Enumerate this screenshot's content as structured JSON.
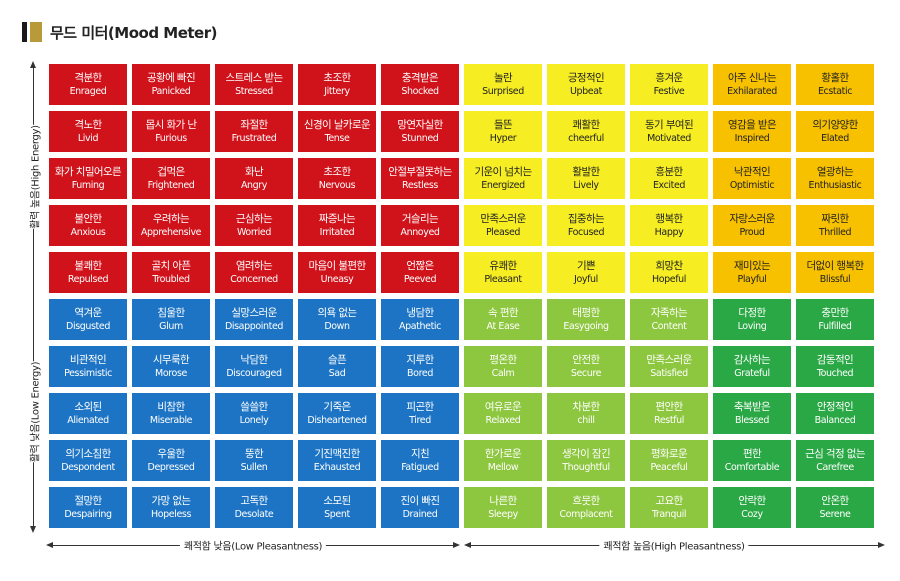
{
  "title": "무드 미터(Mood Meter)",
  "axes": {
    "high_energy": "활력 높음(High Energy)",
    "low_energy": "활력 낮음(Low Energy)",
    "low_pleasantness": "쾌적함 낮음(Low Pleasantness)",
    "high_pleasantness": "쾌적함 높음(High Pleasantness)"
  },
  "colors": {
    "red": "#d0121b",
    "blue": "#1d74c4",
    "yellow": "#f6ee22",
    "orange": "#f7c100",
    "light_green": "#8dc63f",
    "dark_green": "#2aa845"
  },
  "left_rows": [
    [
      {
        "ko": "격분한",
        "en": "Enraged",
        "color": "red"
      },
      {
        "ko": "공황에 빠진",
        "en": "Panicked",
        "color": "red"
      },
      {
        "ko": "스트레스 받는",
        "en": "Stressed",
        "color": "red"
      },
      {
        "ko": "초조한",
        "en": "Jittery",
        "color": "red"
      },
      {
        "ko": "충격받은",
        "en": "Shocked",
        "color": "red"
      }
    ],
    [
      {
        "ko": "격노한",
        "en": "Livid",
        "color": "red"
      },
      {
        "ko": "몹시 화가 난",
        "en": "Furious",
        "color": "red"
      },
      {
        "ko": "좌절한",
        "en": "Frustrated",
        "color": "red"
      },
      {
        "ko": "신경이 날카로운",
        "en": "Tense",
        "color": "red"
      },
      {
        "ko": "망연자실한",
        "en": "Stunned",
        "color": "red"
      }
    ],
    [
      {
        "ko": "화가 치밀어오른",
        "en": "Fuming",
        "color": "red"
      },
      {
        "ko": "겁먹은",
        "en": "Frightened",
        "color": "red"
      },
      {
        "ko": "화난",
        "en": "Angry",
        "color": "red"
      },
      {
        "ko": "초조한",
        "en": "Nervous",
        "color": "red"
      },
      {
        "ko": "안절부절못하는",
        "en": "Restless",
        "color": "red"
      }
    ],
    [
      {
        "ko": "불안한",
        "en": "Anxious",
        "color": "red"
      },
      {
        "ko": "우려하는",
        "en": "Apprehensive",
        "color": "red"
      },
      {
        "ko": "근심하는",
        "en": "Worried",
        "color": "red"
      },
      {
        "ko": "짜증나는",
        "en": "Irritated",
        "color": "red"
      },
      {
        "ko": "거슬리는",
        "en": "Annoyed",
        "color": "red"
      }
    ],
    [
      {
        "ko": "불쾌한",
        "en": "Repulsed",
        "color": "red"
      },
      {
        "ko": "골치 아픈",
        "en": "Troubled",
        "color": "red"
      },
      {
        "ko": "염려하는",
        "en": "Concerned",
        "color": "red"
      },
      {
        "ko": "마음이 불편한",
        "en": "Uneasy",
        "color": "red"
      },
      {
        "ko": "언짢은",
        "en": "Peeved",
        "color": "red"
      }
    ],
    [
      {
        "ko": "역겨운",
        "en": "Disgusted",
        "color": "blue"
      },
      {
        "ko": "침울한",
        "en": "Glum",
        "color": "blue"
      },
      {
        "ko": "실망스러운",
        "en": "Disappointed",
        "color": "blue"
      },
      {
        "ko": "의욕 없는",
        "en": "Down",
        "color": "blue"
      },
      {
        "ko": "냉담한",
        "en": "Apathetic",
        "color": "blue"
      }
    ],
    [
      {
        "ko": "비관적인",
        "en": "Pessimistic",
        "color": "blue"
      },
      {
        "ko": "시무룩한",
        "en": "Morose",
        "color": "blue"
      },
      {
        "ko": "낙담한",
        "en": "Discouraged",
        "color": "blue"
      },
      {
        "ko": "슬픈",
        "en": "Sad",
        "color": "blue"
      },
      {
        "ko": "지루한",
        "en": "Bored",
        "color": "blue"
      }
    ],
    [
      {
        "ko": "소외된",
        "en": "Alienated",
        "color": "blue"
      },
      {
        "ko": "비참한",
        "en": "Miserable",
        "color": "blue"
      },
      {
        "ko": "쓸쓸한",
        "en": "Lonely",
        "color": "blue"
      },
      {
        "ko": "기죽은",
        "en": "Disheartened",
        "color": "blue"
      },
      {
        "ko": "피곤한",
        "en": "Tired",
        "color": "blue"
      }
    ],
    [
      {
        "ko": "의기소침한",
        "en": "Despondent",
        "color": "blue"
      },
      {
        "ko": "우울한",
        "en": "Depressed",
        "color": "blue"
      },
      {
        "ko": "뚱한",
        "en": "Sullen",
        "color": "blue"
      },
      {
        "ko": "기진맥진한",
        "en": "Exhausted",
        "color": "blue"
      },
      {
        "ko": "지친",
        "en": "Fatigued",
        "color": "blue"
      }
    ],
    [
      {
        "ko": "절망한",
        "en": "Despairing",
        "color": "blue"
      },
      {
        "ko": "가망 없는",
        "en": "Hopeless",
        "color": "blue"
      },
      {
        "ko": "고독한",
        "en": "Desolate",
        "color": "blue"
      },
      {
        "ko": "소모된",
        "en": "Spent",
        "color": "blue"
      },
      {
        "ko": "진이 빠진",
        "en": "Drained",
        "color": "blue"
      }
    ]
  ],
  "right_rows": [
    [
      {
        "ko": "놀란",
        "en": "Surprised",
        "color": "yellow"
      },
      {
        "ko": "긍정적인",
        "en": "Upbeat",
        "color": "yellow"
      },
      {
        "ko": "흥겨운",
        "en": "Festive",
        "color": "yellow"
      },
      {
        "ko": "아주 신나는",
        "en": "Exhilarated",
        "color": "orange"
      },
      {
        "ko": "황홀한",
        "en": "Ecstatic",
        "color": "orange"
      }
    ],
    [
      {
        "ko": "들뜬",
        "en": "Hyper",
        "color": "yellow"
      },
      {
        "ko": "쾌활한",
        "en": "cheerful",
        "color": "yellow"
      },
      {
        "ko": "동기 부여된",
        "en": "Motivated",
        "color": "yellow"
      },
      {
        "ko": "영감을 받은",
        "en": "Inspired",
        "color": "orange"
      },
      {
        "ko": "의기양양한",
        "en": "Elated",
        "color": "orange"
      }
    ],
    [
      {
        "ko": "기운이 넘치는",
        "en": "Energized",
        "color": "yellow"
      },
      {
        "ko": "활발한",
        "en": "Lively",
        "color": "yellow"
      },
      {
        "ko": "흥분한",
        "en": "Excited",
        "color": "yellow"
      },
      {
        "ko": "낙관적인",
        "en": "Optimistic",
        "color": "orange"
      },
      {
        "ko": "열광하는",
        "en": "Enthusiastic",
        "color": "orange"
      }
    ],
    [
      {
        "ko": "만족스러운",
        "en": "Pleased",
        "color": "yellow"
      },
      {
        "ko": "집중하는",
        "en": "Focused",
        "color": "yellow"
      },
      {
        "ko": "행복한",
        "en": "Happy",
        "color": "yellow"
      },
      {
        "ko": "자랑스러운",
        "en": "Proud",
        "color": "orange"
      },
      {
        "ko": "짜릿한",
        "en": "Thrilled",
        "color": "orange"
      }
    ],
    [
      {
        "ko": "유쾌한",
        "en": "Pleasant",
        "color": "yellow"
      },
      {
        "ko": "기쁜",
        "en": "Joyful",
        "color": "yellow"
      },
      {
        "ko": "희망찬",
        "en": "Hopeful",
        "color": "yellow"
      },
      {
        "ko": "재미있는",
        "en": "Playful",
        "color": "orange"
      },
      {
        "ko": "더없이 행복한",
        "en": "Blissful",
        "color": "orange"
      }
    ],
    [
      {
        "ko": "속 편한",
        "en": "At Ease",
        "color": "light_green"
      },
      {
        "ko": "태평한",
        "en": "Easygoing",
        "color": "light_green"
      },
      {
        "ko": "자족하는",
        "en": "Content",
        "color": "light_green"
      },
      {
        "ko": "다정한",
        "en": "Loving",
        "color": "dark_green"
      },
      {
        "ko": "충만한",
        "en": "Fulfilled",
        "color": "dark_green"
      }
    ],
    [
      {
        "ko": "평온한",
        "en": "Calm",
        "color": "light_green"
      },
      {
        "ko": "안전한",
        "en": "Secure",
        "color": "light_green"
      },
      {
        "ko": "만족스러운",
        "en": "Satisfied",
        "color": "light_green"
      },
      {
        "ko": "감사하는",
        "en": "Grateful",
        "color": "dark_green"
      },
      {
        "ko": "감동적인",
        "en": "Touched",
        "color": "dark_green"
      }
    ],
    [
      {
        "ko": "여유로운",
        "en": "Relaxed",
        "color": "light_green"
      },
      {
        "ko": "차분한",
        "en": "chill",
        "color": "light_green"
      },
      {
        "ko": "편안한",
        "en": "Restful",
        "color": "light_green"
      },
      {
        "ko": "축복받은",
        "en": "Blessed",
        "color": "dark_green"
      },
      {
        "ko": "안정적인",
        "en": "Balanced",
        "color": "dark_green"
      }
    ],
    [
      {
        "ko": "한가로운",
        "en": "Mellow",
        "color": "light_green"
      },
      {
        "ko": "생각이 잠긴",
        "en": "Thoughtful",
        "color": "light_green"
      },
      {
        "ko": "평화로운",
        "en": "Peaceful",
        "color": "light_green"
      },
      {
        "ko": "편한",
        "en": "Comfortable",
        "color": "dark_green"
      },
      {
        "ko": "근심 걱정 없는",
        "en": "Carefree",
        "color": "dark_green"
      }
    ],
    [
      {
        "ko": "나른한",
        "en": "Sleepy",
        "color": "light_green"
      },
      {
        "ko": "흐뭇한",
        "en": "Complacent",
        "color": "light_green"
      },
      {
        "ko": "고요한",
        "en": "Tranquil",
        "color": "light_green"
      },
      {
        "ko": "안락한",
        "en": "Cozy",
        "color": "dark_green"
      },
      {
        "ko": "안온한",
        "en": "Serene",
        "color": "dark_green"
      }
    ]
  ]
}
